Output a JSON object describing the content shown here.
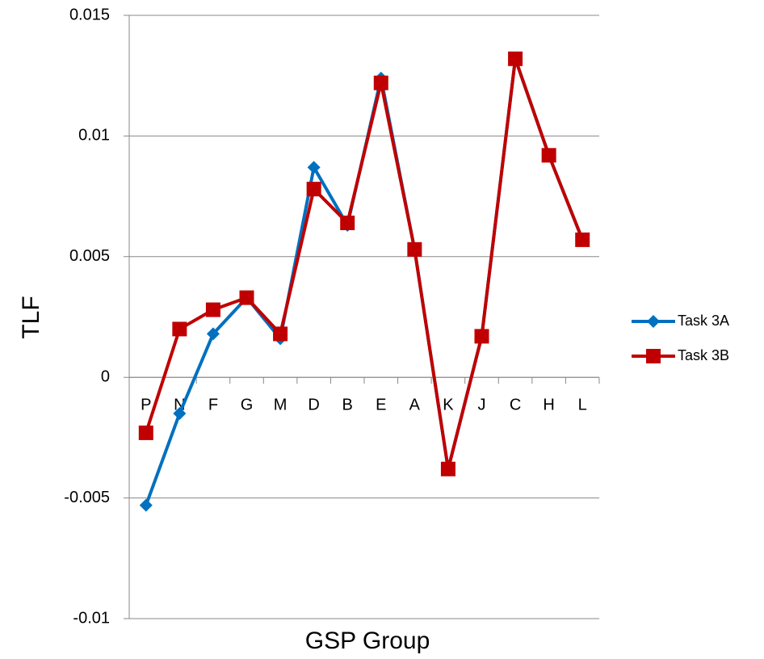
{
  "chart_data": {
    "type": "line",
    "x_label": "GSP Group",
    "y_label": "TLF",
    "categories": [
      "P",
      "N",
      "F",
      "G",
      "M",
      "D",
      "B",
      "E",
      "A",
      "K",
      "J",
      "C",
      "H",
      "L"
    ],
    "series": [
      {
        "name": "Task 3A",
        "color": "#0070c0",
        "marker": "diamond",
        "values": [
          -0.0053,
          -0.0015,
          0.0018,
          0.0033,
          0.0016,
          0.0087,
          0.0063,
          0.0124,
          0.0053,
          -0.0038,
          0.0017,
          0.0132,
          0.0092,
          0.0057
        ]
      },
      {
        "name": "Task 3B",
        "color": "#c00000",
        "marker": "square",
        "values": [
          -0.0023,
          0.002,
          0.0028,
          0.0033,
          0.0018,
          0.0078,
          0.0064,
          0.0122,
          0.0053,
          -0.0038,
          0.0017,
          0.0132,
          0.0092,
          0.0057
        ]
      }
    ],
    "ylim": [
      -0.01,
      0.015
    ],
    "yticks": [
      -0.01,
      -0.005,
      0,
      0.005,
      0.01,
      0.015
    ],
    "grid": true,
    "legend": "right"
  }
}
